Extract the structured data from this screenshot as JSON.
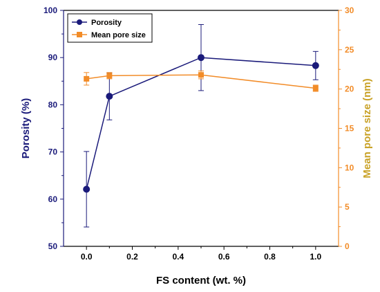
{
  "chart_data": {
    "type": "line",
    "xlabel": "FS content (wt. %)",
    "ylabel_left": "Porosity (%)",
    "ylabel_right": "Mean pore size (nm)",
    "xlim": [
      -0.1,
      1.1
    ],
    "ylim_left": [
      50,
      100
    ],
    "ylim_right": [
      0,
      30
    ],
    "x_ticks": [
      "0.0",
      "0.2",
      "0.4",
      "0.6",
      "0.8",
      "1.0"
    ],
    "y_left_ticks": [
      "50",
      "60",
      "70",
      "80",
      "90",
      "100"
    ],
    "y_right_ticks": [
      "0",
      "5",
      "10",
      "15",
      "20",
      "25",
      "30"
    ],
    "legend_position": "top-left",
    "grid": false,
    "series": [
      {
        "name": "Porosity",
        "axis": "left",
        "color": "#1a1a7a",
        "marker": "circle",
        "x": [
          0.0,
          0.1,
          0.5,
          1.0
        ],
        "y": [
          62.1,
          81.8,
          90.0,
          88.3
        ],
        "error": [
          8.0,
          5.0,
          7.0,
          3.0
        ]
      },
      {
        "name": "Mean pore size",
        "axis": "right",
        "color": "#f28c28",
        "marker": "square",
        "x": [
          0.0,
          0.1,
          0.5,
          1.0
        ],
        "y": [
          21.3,
          21.7,
          21.8,
          20.1
        ],
        "error": [
          0.8,
          0.4,
          0.5,
          0.4
        ]
      }
    ],
    "colors": {
      "left_axis": "#1a1a7a",
      "right_axis": "#f28c28",
      "right_title": "#c9a227"
    }
  }
}
